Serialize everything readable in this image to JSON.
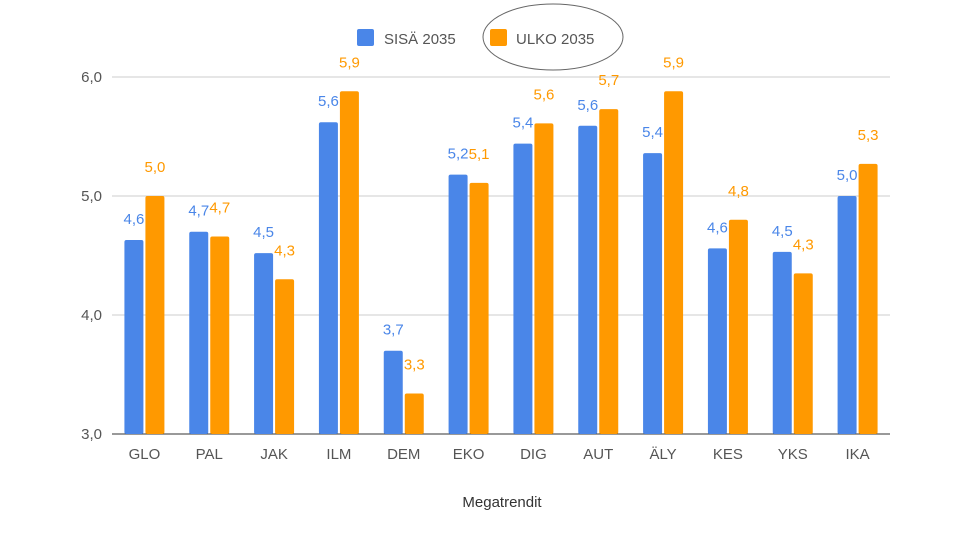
{
  "chart_data": {
    "type": "bar",
    "title": "",
    "xlabel": "Megatrendit",
    "ylabel": "",
    "ylim": [
      3.0,
      6.0
    ],
    "yticks": [
      "3,0",
      "4,0",
      "5,0",
      "6,0"
    ],
    "ytick_values": [
      3.0,
      4.0,
      5.0,
      6.0
    ],
    "grid": true,
    "legend_position": "top",
    "legend_highlight": "ULKO 2035",
    "categories": [
      "GLO",
      "PAL",
      "JAK",
      "ILM",
      "DEM",
      "EKO",
      "DIG",
      "AUT",
      "ÄLY",
      "KES",
      "YKS",
      "IKA"
    ],
    "series": [
      {
        "name": "SISÄ 2035",
        "color": "#4a86e8",
        "values": [
          4.63,
          4.7,
          4.52,
          5.62,
          3.7,
          5.18,
          5.44,
          5.59,
          5.36,
          4.56,
          4.53,
          5.0
        ],
        "labels": [
          "4,6",
          "4,7",
          "4,5",
          "5,6",
          "3,7",
          "5,2",
          "5,4",
          "5,6",
          "5,4",
          "4,6",
          "4,5",
          "5,0"
        ]
      },
      {
        "name": "ULKO 2035",
        "color": "#ff9900",
        "values": [
          5.0,
          4.66,
          4.3,
          5.88,
          3.34,
          5.11,
          5.61,
          5.73,
          5.88,
          4.8,
          4.35,
          5.27
        ],
        "labels": [
          "5,0",
          "4,7",
          "4,3",
          "5,9",
          "3,3",
          "5,1",
          "5,6",
          "5,7",
          "5,9",
          "4,8",
          "4,3",
          "5,3"
        ]
      }
    ]
  }
}
